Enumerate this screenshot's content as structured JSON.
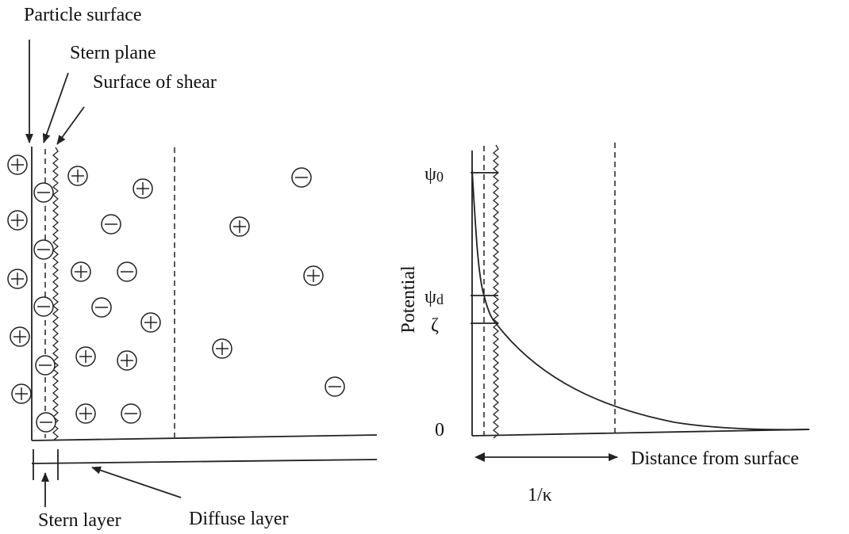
{
  "labels": {
    "particle_surface": "Particle surface",
    "stern_plane": "Stern plane",
    "surface_of_shear": "Surface of shear",
    "stern_layer": "Stern layer",
    "diffuse_layer": "Diffuse layer"
  },
  "graph": {
    "y_axis_label": "Potential",
    "x_axis_label": "Distance from surface",
    "debye_length": "1/κ",
    "levels": [
      {
        "symbol": "ψ",
        "subscript": "0"
      },
      {
        "symbol": "ψ",
        "subscript": "d"
      },
      {
        "symbol": "ζ"
      },
      {
        "symbol": "0"
      }
    ]
  }
}
